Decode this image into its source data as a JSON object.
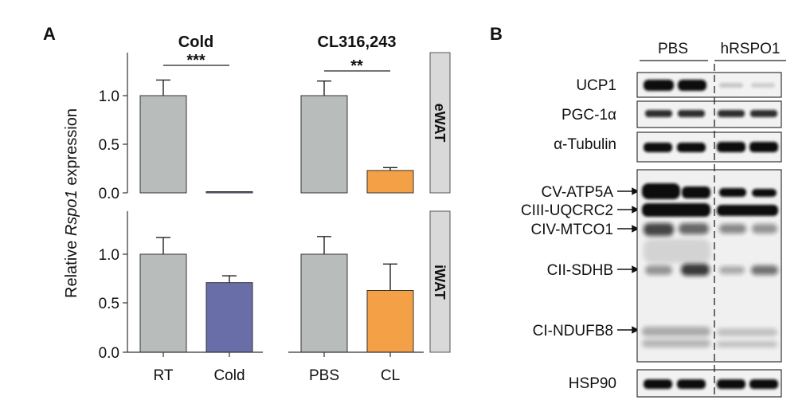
{
  "panel_a_letter": "A",
  "panel_b_letter": "B",
  "chart_data": {
    "type": "bar",
    "ylabel_prefix": "Relative ",
    "ylabel_italic": "Rspo1",
    "ylabel_suffix": " expression",
    "ylim": [
      0,
      1.35
    ],
    "yticks": [
      "0.0",
      "0.5",
      "1.0"
    ],
    "ytick_values": [
      0,
      0.5,
      1.0
    ],
    "grid": false,
    "facets": [
      {
        "title": "Cold",
        "categories": [
          "RT",
          "Cold"
        ]
      },
      {
        "title": "CL316,243",
        "categories": [
          "PBS",
          "CL"
        ]
      }
    ],
    "rows": [
      "eWAT",
      "iWAT"
    ],
    "colors": {
      "control": "#b8bdbc",
      "cold": "#6a6ea8",
      "cl": "#f4a046"
    },
    "bars": [
      {
        "row": "eWAT",
        "facet": "Cold",
        "category": "RT",
        "value": 1.0,
        "error": 0.16,
        "color": "control"
      },
      {
        "row": "eWAT",
        "facet": "Cold",
        "category": "Cold",
        "value": 0.005,
        "error": 0.0,
        "color": "cold"
      },
      {
        "row": "eWAT",
        "facet": "CL316,243",
        "category": "PBS",
        "value": 1.0,
        "error": 0.15,
        "color": "control"
      },
      {
        "row": "eWAT",
        "facet": "CL316,243",
        "category": "CL",
        "value": 0.23,
        "error": 0.03,
        "color": "cl"
      },
      {
        "row": "iWAT",
        "facet": "Cold",
        "category": "RT",
        "value": 1.0,
        "error": 0.17,
        "color": "control"
      },
      {
        "row": "iWAT",
        "facet": "Cold",
        "category": "Cold",
        "value": 0.71,
        "error": 0.07,
        "color": "cold"
      },
      {
        "row": "iWAT",
        "facet": "CL316,243",
        "category": "PBS",
        "value": 1.0,
        "error": 0.18,
        "color": "control"
      },
      {
        "row": "iWAT",
        "facet": "CL316,243",
        "category": "CL",
        "value": 0.63,
        "error": 0.27,
        "color": "cl"
      }
    ],
    "significance": [
      {
        "row": "eWAT",
        "facet": "Cold",
        "label": "***"
      },
      {
        "row": "eWAT",
        "facet": "CL316,243",
        "label": "**"
      }
    ]
  },
  "western_blot": {
    "groups": [
      "PBS",
      "hRSPO1"
    ],
    "labels": {
      "ucp1": "UCP1",
      "pgc1a": "PGC-1α",
      "tubulin": "α-Tubulin",
      "atp5a": "CV-ATP5A",
      "uqcrc2": "CIII-UQCRC2",
      "mtco1": "CIV-MTCO1",
      "sdhb": "CII-SDHB",
      "ndufb8": "CI-NDUFB8",
      "hsp90": "HSP90"
    }
  }
}
